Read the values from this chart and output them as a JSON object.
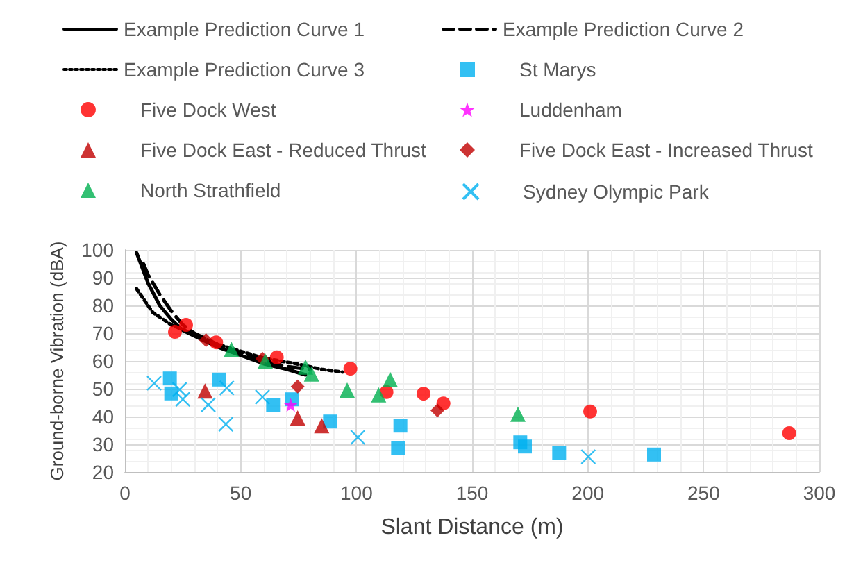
{
  "chart_data": {
    "type": "scatter",
    "xlabel": "Slant Distance (m)",
    "ylabel": "Ground-borne Vibration (dBA)",
    "xlim": [
      0,
      300
    ],
    "xticks": [
      0,
      50,
      100,
      150,
      200,
      250,
      300
    ],
    "ylim": [
      20,
      100
    ],
    "yticks": [
      20,
      30,
      40,
      50,
      60,
      70,
      80,
      90,
      100
    ],
    "grid": true,
    "legend": "top",
    "series": [
      {
        "name": "Example Prediction Curve 1",
        "type": "line",
        "color": "#000000",
        "line_style": "solid",
        "marker": "none",
        "x": [
          5,
          10,
          15,
          20,
          25,
          30,
          40,
          50,
          60,
          70,
          78
        ],
        "values": [
          99,
          88,
          80,
          75,
          71,
          69,
          65,
          62,
          59,
          57,
          55
        ]
      },
      {
        "name": "Example Prediction Curve 2",
        "type": "line",
        "color": "#000000",
        "line_style": "dashed",
        "marker": "none",
        "x": [
          8,
          10,
          15,
          20,
          25,
          30,
          40,
          50,
          60,
          70,
          80
        ],
        "values": [
          95,
          91,
          84,
          78,
          73,
          70,
          66,
          63,
          60,
          58,
          57
        ]
      },
      {
        "name": "Example Prediction Curve 3",
        "type": "line",
        "color": "#000000",
        "line_style": "dotted",
        "marker": "none",
        "x": [
          5,
          12,
          20,
          29,
          40,
          48,
          60,
          74,
          85,
          94
        ],
        "values": [
          86,
          77.5,
          73,
          70,
          66,
          64,
          61,
          59,
          57,
          56
        ]
      },
      {
        "name": "St Marys",
        "color": "#00b0f0",
        "marker": "square",
        "x": [
          19.4,
          20,
          40.6,
          64,
          72,
          88.6,
          119,
          118,
          170.8,
          172.8,
          187.6,
          228.6
        ],
        "values": [
          53.7,
          48.3,
          53.3,
          44.2,
          46.2,
          38.2,
          36.7,
          28.7,
          30.7,
          29.2,
          26.8,
          26.3
        ]
      },
      {
        "name": "Five Dock West",
        "color": "#ff0000",
        "marker": "circle",
        "x": [
          21.6,
          26.4,
          39.4,
          65.6,
          97.4,
          113,
          129,
          137.6,
          201,
          287
        ],
        "values": [
          70.5,
          73,
          66.7,
          61.3,
          57.2,
          48.8,
          48.2,
          44.7,
          41.8,
          34
        ]
      },
      {
        "name": "Luddenham",
        "color": "#ff00ff",
        "marker": "star",
        "x": [
          71.6
        ],
        "values": [
          44.2
        ]
      },
      {
        "name": "Five Dock East - Reduced Thrust",
        "color": "#c00000",
        "marker": "triangle",
        "x": [
          34.6,
          74.6,
          85
        ],
        "values": [
          49.2,
          39.5,
          36.7
        ]
      },
      {
        "name": "Five Dock East - Increased Thrust",
        "color": "#c00000",
        "marker": "diamond",
        "x": [
          35,
          59.4,
          74.6,
          135
        ],
        "values": [
          67.5,
          60.8,
          50.8,
          42.2
        ]
      },
      {
        "name": "North Strathfield",
        "color": "#00b050",
        "marker": "triangle",
        "x": [
          46,
          60.6,
          78,
          80.6,
          96,
          109.6,
          114.6,
          169.8
        ],
        "values": [
          64.2,
          60,
          57.8,
          55.3,
          49.5,
          47.8,
          53.3,
          40.8
        ]
      },
      {
        "name": "Sydney Olympic Park",
        "color": "#00b0f0",
        "marker": "cross",
        "x": [
          12.6,
          23.6,
          25,
          36,
          44,
          43.6,
          59.4,
          100.6,
          200.2
        ],
        "values": [
          52,
          49.7,
          46.2,
          44.2,
          50.3,
          37.2,
          47,
          32.5,
          25.5
        ]
      }
    ]
  }
}
